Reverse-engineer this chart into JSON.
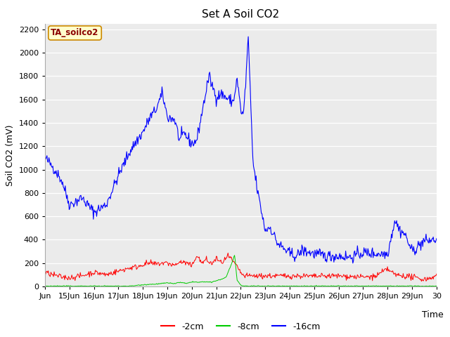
{
  "title": "Set A Soil CO2",
  "ylabel": "Soil CO2 (mV)",
  "xlabel": "Time",
  "annotation": "TA_soilco2",
  "ylim": [
    0,
    2250
  ],
  "yticks": [
    0,
    200,
    400,
    600,
    800,
    1000,
    1200,
    1400,
    1600,
    1800,
    2000,
    2200
  ],
  "bg_color": "#ebebeb",
  "line_colors": {
    "2cm": "#ff0000",
    "8cm": "#00cc00",
    "16cm": "#0000ff"
  },
  "legend_labels": [
    "-2cm",
    "-8cm",
    "-16cm"
  ],
  "title_fontsize": 11,
  "axis_fontsize": 9,
  "tick_fontsize": 8,
  "tick_labels": [
    "Jun",
    "15Jun",
    "16Jun",
    "17Jun",
    "18Jun",
    "19Jun",
    "20Jun",
    "21Jun",
    "22Jun",
    "23Jun",
    "24Jun",
    "25Jun",
    "26Jun",
    "27Jun",
    "28Jun",
    "29Jun",
    "30"
  ],
  "blue_key_x": [
    0,
    0.3,
    0.5,
    0.7,
    1.0,
    1.2,
    1.5,
    2.0,
    2.5,
    3.0,
    3.5,
    4.0,
    4.3,
    4.5,
    4.8,
    5.0,
    5.3,
    5.5,
    5.7,
    6.0,
    6.2,
    6.5,
    6.7,
    7.0,
    7.2,
    7.5,
    7.7,
    7.85,
    8.0,
    8.1,
    8.2,
    8.3,
    8.5,
    8.7,
    9.0,
    9.2,
    9.5,
    10.0,
    10.3,
    10.5,
    11.0,
    11.5,
    12.0,
    12.5,
    13.0,
    13.5,
    14.0,
    14.3,
    14.5,
    14.7,
    15.0,
    15.5,
    16.0
  ],
  "blue_key_y": [
    1100,
    1030,
    970,
    900,
    700,
    720,
    760,
    635,
    700,
    950,
    1170,
    1320,
    1450,
    1500,
    1650,
    1450,
    1430,
    1250,
    1310,
    1220,
    1250,
    1580,
    1800,
    1620,
    1650,
    1600,
    1580,
    1780,
    1510,
    1460,
    1720,
    2150,
    1060,
    800,
    480,
    510,
    370,
    280,
    260,
    310,
    280,
    260,
    260,
    250,
    290,
    280,
    280,
    570,
    480,
    450,
    300,
    390,
    400
  ],
  "red_key_x": [
    0,
    0.3,
    0.5,
    0.7,
    1.0,
    1.3,
    1.5,
    1.8,
    2.0,
    2.3,
    2.5,
    2.8,
    3.0,
    3.3,
    3.5,
    3.8,
    4.0,
    4.3,
    4.5,
    4.8,
    5.0,
    5.3,
    5.5,
    5.8,
    6.0,
    6.2,
    6.4,
    6.6,
    6.8,
    7.0,
    7.2,
    7.5,
    7.8,
    8.1,
    8.3,
    8.5,
    9.0,
    9.5,
    10.0,
    10.5,
    11.0,
    11.5,
    12.0,
    12.5,
    13.0,
    13.5,
    14.0,
    14.3,
    14.7,
    15.0,
    15.5,
    16.0
  ],
  "red_key_y": [
    120,
    100,
    90,
    80,
    75,
    85,
    90,
    110,
    120,
    110,
    100,
    120,
    130,
    150,
    160,
    170,
    190,
    200,
    190,
    200,
    200,
    180,
    210,
    200,
    170,
    270,
    200,
    230,
    190,
    240,
    200,
    260,
    180,
    90,
    90,
    90,
    90,
    90,
    90,
    90,
    85,
    90,
    90,
    85,
    80,
    85,
    150,
    100,
    90,
    80,
    60,
    90
  ],
  "green_key_x": [
    0,
    3.5,
    4.0,
    4.5,
    5.0,
    5.3,
    5.5,
    5.8,
    6.0,
    6.3,
    6.5,
    6.8,
    7.0,
    7.2,
    7.4,
    7.6,
    7.75,
    7.85,
    8.0,
    8.1,
    8.2,
    8.5,
    9.0,
    16.0
  ],
  "green_key_y": [
    3,
    3,
    15,
    20,
    30,
    25,
    35,
    25,
    40,
    35,
    40,
    35,
    50,
    60,
    80,
    180,
    270,
    50,
    10,
    5,
    3,
    3,
    3,
    3
  ]
}
